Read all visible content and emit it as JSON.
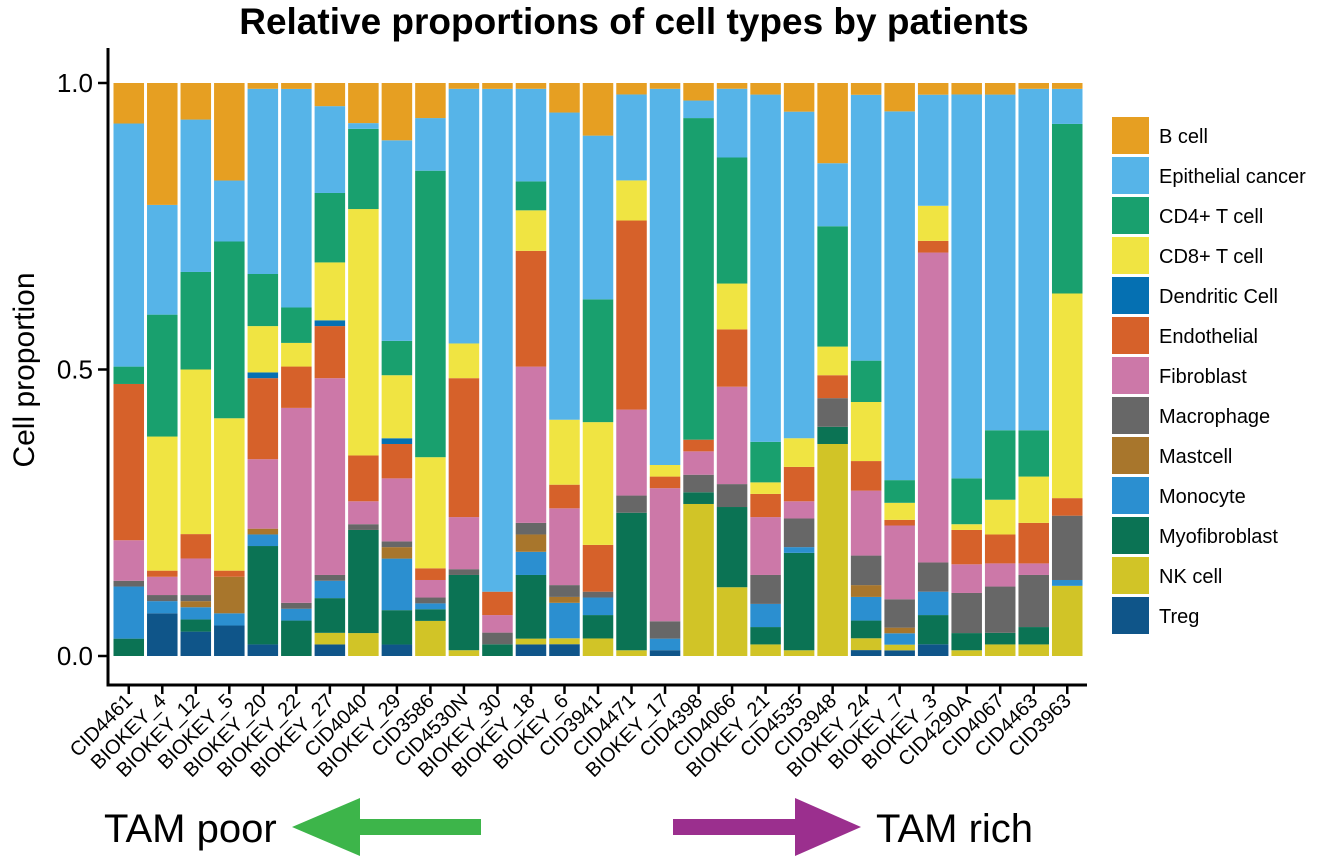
{
  "chart_data": {
    "type": "bar",
    "stacked": true,
    "title": "Relative proportions of cell types by patients",
    "xlabel": "",
    "ylabel": "Cell proportion",
    "ylim": [
      0,
      1
    ],
    "yticks": [
      "0.0",
      "0.5",
      "1.0"
    ],
    "legend_position": "right",
    "categories": [
      "CID4461",
      "BIOKEY_4",
      "BIOKEY_12",
      "BIOKEY_5",
      "BIOKEY_20",
      "BIOKEY_22",
      "BIOKEY_27",
      "CID4040",
      "BIOKEY_29",
      "CID3586",
      "CID4530N",
      "BIOKEY_30",
      "BIOKEY_18",
      "BIOKEY_6",
      "CID3941",
      "CID4471",
      "BIOKEY_17",
      "CID4398",
      "CID4066",
      "BIOKEY_21",
      "CID4535",
      "CID3948",
      "BIOKEY_24",
      "BIOKEY_7",
      "BIOKEY_3",
      "CID4290A",
      "CID4067",
      "CID4463",
      "CID3963"
    ],
    "series": [
      {
        "name": "Treg",
        "color": "#0F5589",
        "values": [
          0.0,
          0.07,
          0.04,
          0.05,
          0.02,
          0.0,
          0.02,
          0.0,
          0.02,
          0.0,
          0.0,
          0.0,
          0.02,
          0.02,
          0.0,
          0.0,
          0.01,
          0.0,
          0.0,
          0.0,
          0.0,
          0.0,
          0.01,
          0.01,
          0.02,
          0.0,
          0.0,
          0.0,
          0.0
        ]
      },
      {
        "name": "NK cell",
        "color": "#D1C427",
        "values": [
          0.0,
          0.0,
          0.0,
          0.0,
          0.0,
          0.0,
          0.02,
          0.04,
          0.0,
          0.06,
          0.01,
          0.0,
          0.01,
          0.01,
          0.03,
          0.01,
          0.0,
          0.26,
          0.12,
          0.02,
          0.01,
          0.37,
          0.02,
          0.01,
          0.0,
          0.01,
          0.02,
          0.02,
          0.12
        ]
      },
      {
        "name": "Myofibroblast",
        "color": "#0B7354",
        "values": [
          0.03,
          0.0,
          0.02,
          0.0,
          0.17,
          0.06,
          0.06,
          0.18,
          0.06,
          0.02,
          0.13,
          0.02,
          0.11,
          0.0,
          0.04,
          0.24,
          0.0,
          0.02,
          0.14,
          0.03,
          0.17,
          0.03,
          0.03,
          0.0,
          0.05,
          0.03,
          0.02,
          0.03,
          0.0
        ]
      },
      {
        "name": "Monocyte",
        "color": "#2B8FD0",
        "values": [
          0.09,
          0.02,
          0.02,
          0.02,
          0.02,
          0.02,
          0.03,
          0.0,
          0.09,
          0.01,
          0.0,
          0.0,
          0.04,
          0.06,
          0.03,
          0.0,
          0.02,
          0.0,
          0.0,
          0.04,
          0.01,
          0.0,
          0.04,
          0.02,
          0.04,
          0.0,
          0.0,
          0.0,
          0.01
        ]
      },
      {
        "name": "Mastcell",
        "color": "#A8762C",
        "values": [
          0.0,
          0.0,
          0.01,
          0.06,
          0.01,
          0.0,
          0.0,
          0.0,
          0.02,
          0.0,
          0.0,
          0.0,
          0.03,
          0.01,
          0.0,
          0.0,
          0.0,
          0.0,
          0.0,
          0.0,
          0.0,
          0.0,
          0.02,
          0.01,
          0.0,
          0.0,
          0.0,
          0.0,
          0.0
        ]
      },
      {
        "name": "Macrophage",
        "color": "#676767",
        "values": [
          0.01,
          0.01,
          0.01,
          0.0,
          0.0,
          0.01,
          0.01,
          0.01,
          0.01,
          0.01,
          0.01,
          0.02,
          0.02,
          0.02,
          0.01,
          0.03,
          0.03,
          0.03,
          0.04,
          0.05,
          0.05,
          0.05,
          0.05,
          0.05,
          0.05,
          0.07,
          0.08,
          0.09,
          0.11
        ]
      },
      {
        "name": "Fibroblast",
        "color": "#CC78A8",
        "values": [
          0.07,
          0.03,
          0.06,
          0.0,
          0.12,
          0.33,
          0.34,
          0.04,
          0.11,
          0.03,
          0.09,
          0.03,
          0.27,
          0.13,
          0.0,
          0.15,
          0.23,
          0.04,
          0.17,
          0.1,
          0.03,
          0.0,
          0.11,
          0.13,
          0.53,
          0.05,
          0.04,
          0.02,
          0.0
        ]
      },
      {
        "name": "Endothelial",
        "color": "#D6612A",
        "values": [
          0.27,
          0.01,
          0.04,
          0.01,
          0.14,
          0.07,
          0.09,
          0.08,
          0.06,
          0.02,
          0.24,
          0.04,
          0.2,
          0.04,
          0.08,
          0.33,
          0.02,
          0.02,
          0.1,
          0.04,
          0.06,
          0.04,
          0.05,
          0.01,
          0.02,
          0.06,
          0.05,
          0.07,
          0.03
        ]
      },
      {
        "name": "Dendritic Cell",
        "color": "#0570B2",
        "values": [
          0.0,
          0.0,
          0.0,
          0.0,
          0.01,
          0.0,
          0.01,
          0.0,
          0.01,
          0.0,
          0.0,
          0.0,
          0.0,
          0.0,
          0.0,
          0.0,
          0.0,
          0.0,
          0.0,
          0.0,
          0.0,
          0.0,
          0.0,
          0.0,
          0.0,
          0.0,
          0.0,
          0.0,
          0.0
        ]
      },
      {
        "name": "CD8+ T cell",
        "color": "#F0E442",
        "values": [
          0.0,
          0.22,
          0.27,
          0.25,
          0.08,
          0.04,
          0.1,
          0.43,
          0.11,
          0.19,
          0.06,
          0.0,
          0.07,
          0.11,
          0.21,
          0.07,
          0.02,
          0.0,
          0.08,
          0.02,
          0.05,
          0.05,
          0.1,
          0.03,
          0.06,
          0.01,
          0.06,
          0.08,
          0.35
        ]
      },
      {
        "name": "CD4+ T cell",
        "color": "#19A06E",
        "values": [
          0.03,
          0.2,
          0.16,
          0.29,
          0.09,
          0.06,
          0.12,
          0.14,
          0.06,
          0.49,
          0.0,
          0.0,
          0.05,
          0.0,
          0.21,
          0.0,
          0.0,
          0.55,
          0.22,
          0.07,
          0.0,
          0.21,
          0.07,
          0.04,
          0.0,
          0.08,
          0.12,
          0.08,
          0.29
        ]
      },
      {
        "name": "Epithelial cancer",
        "color": "#56B4E8",
        "values": [
          0.42,
          0.18,
          0.25,
          0.1,
          0.32,
          0.37,
          0.15,
          0.01,
          0.35,
          0.09,
          0.44,
          0.86,
          0.16,
          0.52,
          0.28,
          0.15,
          0.65,
          0.03,
          0.12,
          0.6,
          0.57,
          0.11,
          0.45,
          0.65,
          0.19,
          0.67,
          0.58,
          0.59,
          0.06
        ]
      },
      {
        "name": "B cell",
        "color": "#E69F22",
        "values": [
          0.07,
          0.2,
          0.06,
          0.16,
          0.01,
          0.01,
          0.04,
          0.07,
          0.1,
          0.06,
          0.01,
          0.01,
          0.01,
          0.05,
          0.09,
          0.02,
          0.01,
          0.03,
          0.01,
          0.02,
          0.05,
          0.14,
          0.02,
          0.05,
          0.02,
          0.02,
          0.02,
          0.01,
          0.01
        ]
      }
    ],
    "legend_order": [
      "B cell",
      "Epithelial cancer",
      "CD4+ T cell",
      "CD8+ T cell",
      "Dendritic Cell",
      "Endothelial",
      "Fibroblast",
      "Macrophage",
      "Mastcell",
      "Monocyte",
      "Myofibroblast",
      "NK cell",
      "Treg"
    ]
  },
  "annotations": {
    "left_label": "TAM poor",
    "right_label": "TAM rich",
    "left_arrow_color": "#3DB54A",
    "right_arrow_color": "#9B2F8E"
  }
}
